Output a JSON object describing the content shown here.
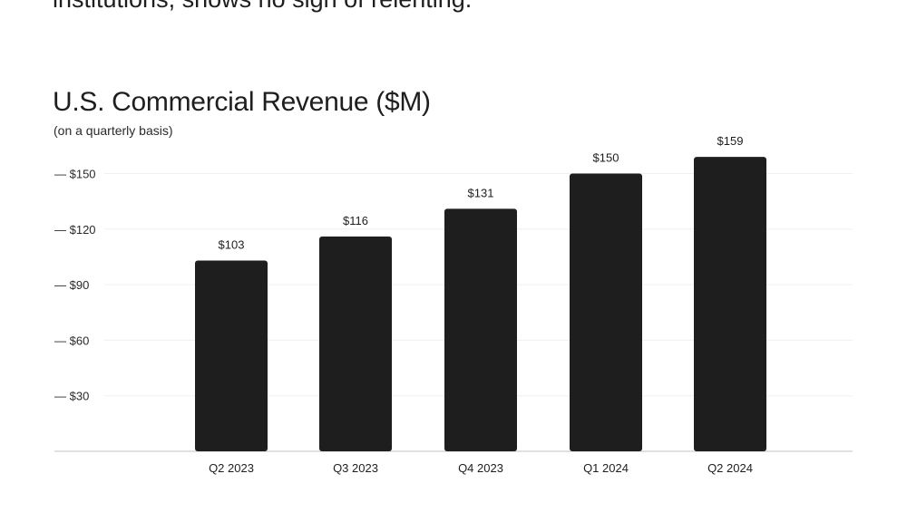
{
  "page_text": {
    "clipped_top_line": "institutions, shows no sign of relenting."
  },
  "chart_data": {
    "type": "bar",
    "title": "U.S. Commercial Revenue ($M)",
    "subtitle": "(on a quarterly basis)",
    "xlabel": "",
    "ylabel": "",
    "categories": [
      "Q2 2023",
      "Q3 2023",
      "Q4 2023",
      "Q1 2024",
      "Q2 2024"
    ],
    "values": [
      103,
      116,
      131,
      150,
      159
    ],
    "value_labels": [
      "$103",
      "$116",
      "$131",
      "$150",
      "$159"
    ],
    "y_ticks": [
      30,
      60,
      90,
      120,
      150
    ],
    "y_tick_labels": [
      "— $30",
      "— $60",
      "— $90",
      "— $120",
      "— $150"
    ],
    "ylim": [
      0,
      150
    ],
    "grid": true,
    "bar_color": "#1e1e1e",
    "grid_color": "#f0f0f0",
    "baseline_color": "#cfcfcf"
  }
}
